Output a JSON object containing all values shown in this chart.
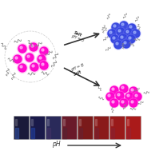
{
  "bg_color": "#ffffff",
  "magenta_color": "#ff00cc",
  "magenta_dark": "#cc0099",
  "blue_color": "#2233cc",
  "blue_dark": "#1122aa",
  "blue_cluster_color": "#3344dd",
  "wavy_color": "#888888",
  "arrow_color": "#333333",
  "label_color": "#555555",
  "ph_label": "pH",
  "salt_label1": "Salt\npH = 5",
  "salt_label2": "pH = 8\nSalt",
  "vial_colors": [
    "#1a1a3a",
    "#1a1a4a",
    "#2a2a5a",
    "#6a1a2a",
    "#7a1a1a",
    "#8a1a1a",
    "#9a1a1a",
    "#aa1a1a"
  ],
  "vial_highlight": [
    "#3355aa",
    "#2244aa",
    "#443366",
    "#552233",
    "#662233",
    "#772233",
    "#882233",
    "#992233"
  ]
}
